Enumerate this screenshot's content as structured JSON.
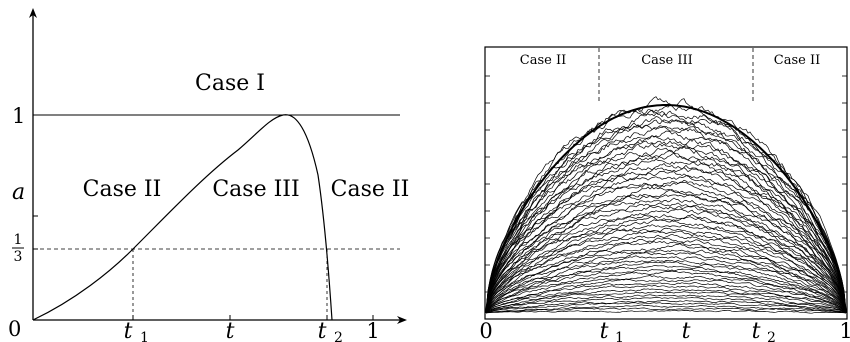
{
  "left_panel": {
    "region_labels": {
      "case_i": "Case I",
      "case_ii_left": "Case II",
      "case_iii": "Case III",
      "case_ii_right": "Case II"
    },
    "y_axis": {
      "label": "a",
      "tick_one": "1",
      "tick_third_num": "1",
      "tick_third_den": "3"
    },
    "x_axis": {
      "label": "t",
      "tick_zero": "0",
      "tick_t1_base": "t",
      "tick_t1_sub": "1",
      "tick_t2_base": "t",
      "tick_t2_sub": "2",
      "tick_one": "1"
    }
  },
  "right_panel": {
    "region_labels": {
      "case_ii_left": "Case II",
      "case_iii": "Case III",
      "case_ii_right": "Case II"
    },
    "x_axis": {
      "label": "t",
      "tick_zero": "0",
      "tick_t1_base": "t",
      "tick_t1_sub": "1",
      "tick_t2_base": "t",
      "tick_t2_sub": "2",
      "tick_one": "1"
    },
    "num_noisy_paths": 60
  }
}
